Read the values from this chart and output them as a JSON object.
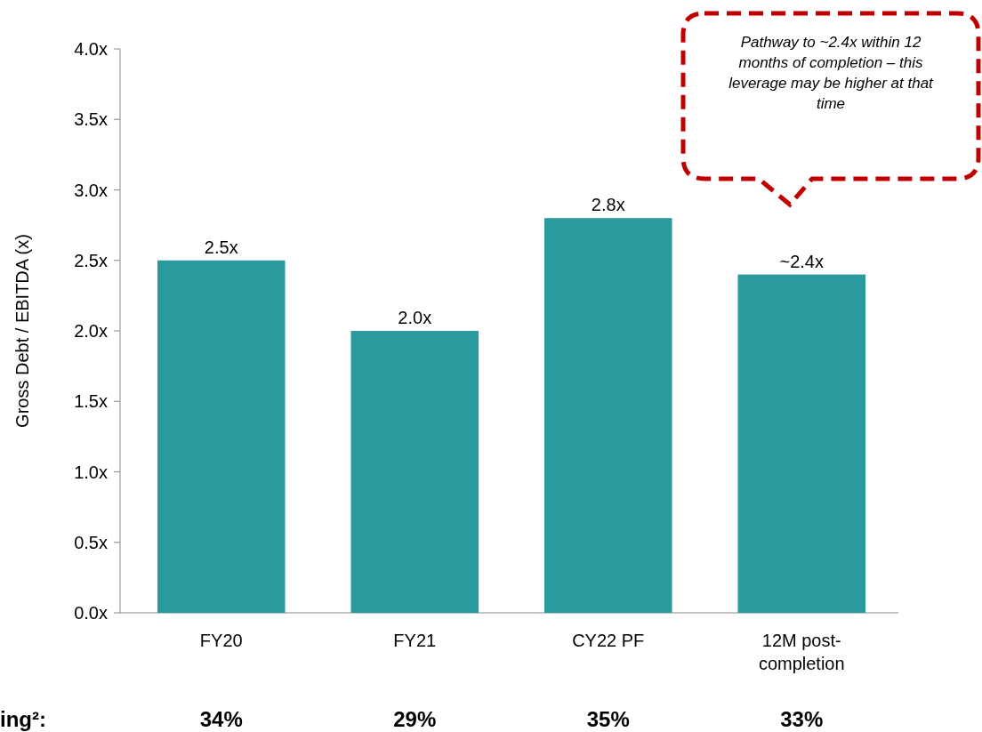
{
  "chart_data": {
    "type": "bar",
    "ylabel": "Gross Debt / EBITDA (x)",
    "categories": [
      "FY20",
      "FY21",
      "CY22 PF",
      "12M post-completion"
    ],
    "values": [
      2.5,
      2.0,
      2.8,
      2.4
    ],
    "value_labels": [
      "2.5x",
      "2.0x",
      "2.8x",
      "~2.4x"
    ],
    "color": "#2a9a9e",
    "ylim": [
      0,
      4
    ],
    "yticks": [
      {
        "value": 0,
        "label": "0.0x"
      },
      {
        "value": 0.5,
        "label": "0.5x"
      },
      {
        "value": 1,
        "label": "1.0x"
      },
      {
        "value": 1.5,
        "label": "1.5x"
      },
      {
        "value": 2,
        "label": "2.0x"
      },
      {
        "value": 2.5,
        "label": "2.5x"
      },
      {
        "value": 3,
        "label": "3.0x"
      },
      {
        "value": 3.5,
        "label": "3.5x"
      },
      {
        "value": 4,
        "label": "4.0x"
      }
    ],
    "annotations": [
      "Pathway to ~2.4x within 12 months of completion – this leverage may be higher at that time",
      "ing²:",
      "34%",
      "29%",
      "35%",
      "33%"
    ]
  }
}
